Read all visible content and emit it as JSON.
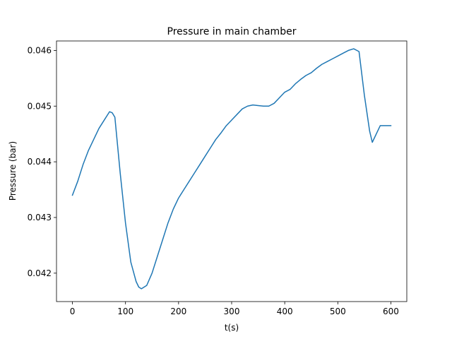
{
  "chart_data": {
    "type": "line",
    "title": "Pressure in main chamber",
    "xlabel": "t(s)",
    "ylabel": "Pressure (bar)",
    "xlim": [
      -30,
      630
    ],
    "ylim": [
      0.04149,
      0.04617
    ],
    "xticks": [
      0,
      100,
      200,
      300,
      400,
      500,
      600
    ],
    "yticks": [
      0.042,
      0.043,
      0.044,
      0.045,
      0.046
    ],
    "xtick_labels": [
      "0",
      "100",
      "200",
      "300",
      "400",
      "500",
      "600"
    ],
    "ytick_labels": [
      "0.042",
      "0.043",
      "0.044",
      "0.045",
      "0.046"
    ],
    "grid": false,
    "series": [
      {
        "color": "#1f77b4",
        "x": [
          0,
          10,
          20,
          30,
          40,
          50,
          60,
          70,
          75,
          80,
          90,
          100,
          110,
          120,
          125,
          130,
          140,
          150,
          160,
          170,
          180,
          190,
          200,
          210,
          220,
          230,
          240,
          250,
          260,
          270,
          280,
          290,
          300,
          310,
          320,
          330,
          340,
          350,
          360,
          370,
          380,
          390,
          400,
          410,
          420,
          430,
          440,
          450,
          460,
          470,
          480,
          490,
          500,
          510,
          520,
          530,
          540,
          550,
          560,
          565,
          570,
          575,
          580,
          585,
          590,
          595,
          600
        ],
        "y": [
          0.0434,
          0.04365,
          0.04395,
          0.0442,
          0.0444,
          0.0446,
          0.04475,
          0.0449,
          0.04488,
          0.0448,
          0.0438,
          0.0429,
          0.0422,
          0.04185,
          0.04175,
          0.04172,
          0.04178,
          0.042,
          0.0423,
          0.0426,
          0.0429,
          0.04315,
          0.04335,
          0.0435,
          0.04365,
          0.0438,
          0.04395,
          0.0441,
          0.04425,
          0.0444,
          0.04452,
          0.04465,
          0.04475,
          0.04485,
          0.04495,
          0.045,
          0.04502,
          0.04501,
          0.045,
          0.045,
          0.04505,
          0.04515,
          0.04525,
          0.0453,
          0.0454,
          0.04548,
          0.04555,
          0.0456,
          0.04568,
          0.04575,
          0.0458,
          0.04585,
          0.0459,
          0.04595,
          0.046,
          0.04603,
          0.04598,
          0.0452,
          0.04455,
          0.04435,
          0.04445,
          0.04455,
          0.04465,
          0.04465,
          0.04465,
          0.04465,
          0.04465
        ]
      }
    ]
  }
}
